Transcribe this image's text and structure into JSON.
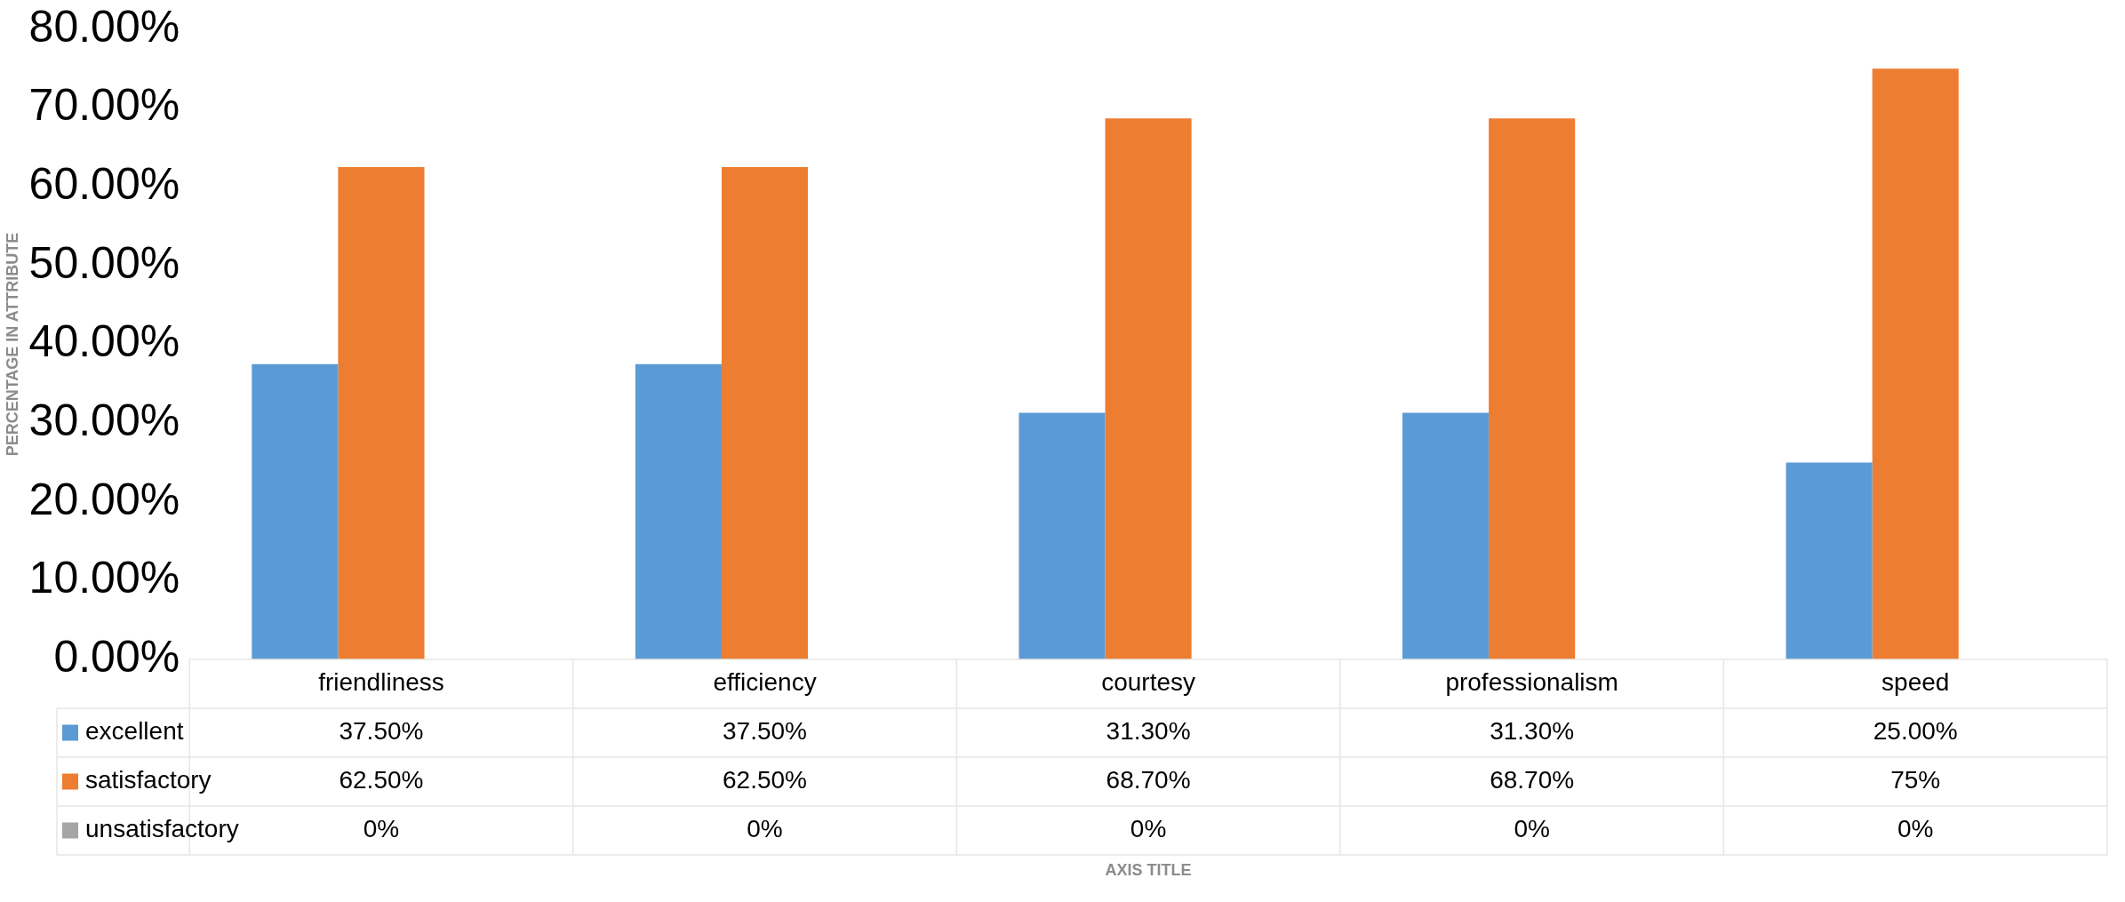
{
  "chart_data": {
    "type": "bar",
    "annotations": [
      "AXIS TITLE"
    ],
    "ylabel": "PERCENTAGE IN ATTRIBUTE",
    "categories": [
      "friendliness",
      "efficiency",
      "courtesy",
      "professionalism",
      "speed"
    ],
    "series": [
      {
        "name": "excellent",
        "color": "#5b9bd5",
        "values": [
          37.5,
          37.5,
          31.3,
          31.3,
          25
        ],
        "value_labels": [
          "37.50%",
          "37.50%",
          "31.30%",
          "31.30%",
          "25.00%"
        ]
      },
      {
        "name": "satisfactory",
        "color": "#ed7d31",
        "values": [
          62.5,
          62.5,
          68.7,
          68.7,
          75
        ],
        "value_labels": [
          "62.50%",
          "62.50%",
          "68.70%",
          "68.70%",
          "75%"
        ]
      },
      {
        "name": "unsatisfactory",
        "color": "#a5a5a5",
        "values": [
          0,
          0,
          0,
          0,
          0
        ],
        "value_labels": [
          "0%",
          "0%",
          "0%",
          "0%",
          "0%"
        ]
      }
    ],
    "ylim": [
      0,
      80
    ],
    "yticks": [
      {
        "value": 0,
        "label": "0.00%"
      },
      {
        "value": 10,
        "label": "10.00%"
      },
      {
        "value": 20,
        "label": "20.00%"
      },
      {
        "value": 30,
        "label": "30.00%"
      },
      {
        "value": 40,
        "label": "40.00%"
      },
      {
        "value": 50,
        "label": "50.00%"
      },
      {
        "value": 60,
        "label": "60.00%"
      },
      {
        "value": 70,
        "label": "70.00%"
      },
      {
        "value": 80,
        "label": "80.00%"
      }
    ],
    "grid": false,
    "legend": "bottom"
  }
}
